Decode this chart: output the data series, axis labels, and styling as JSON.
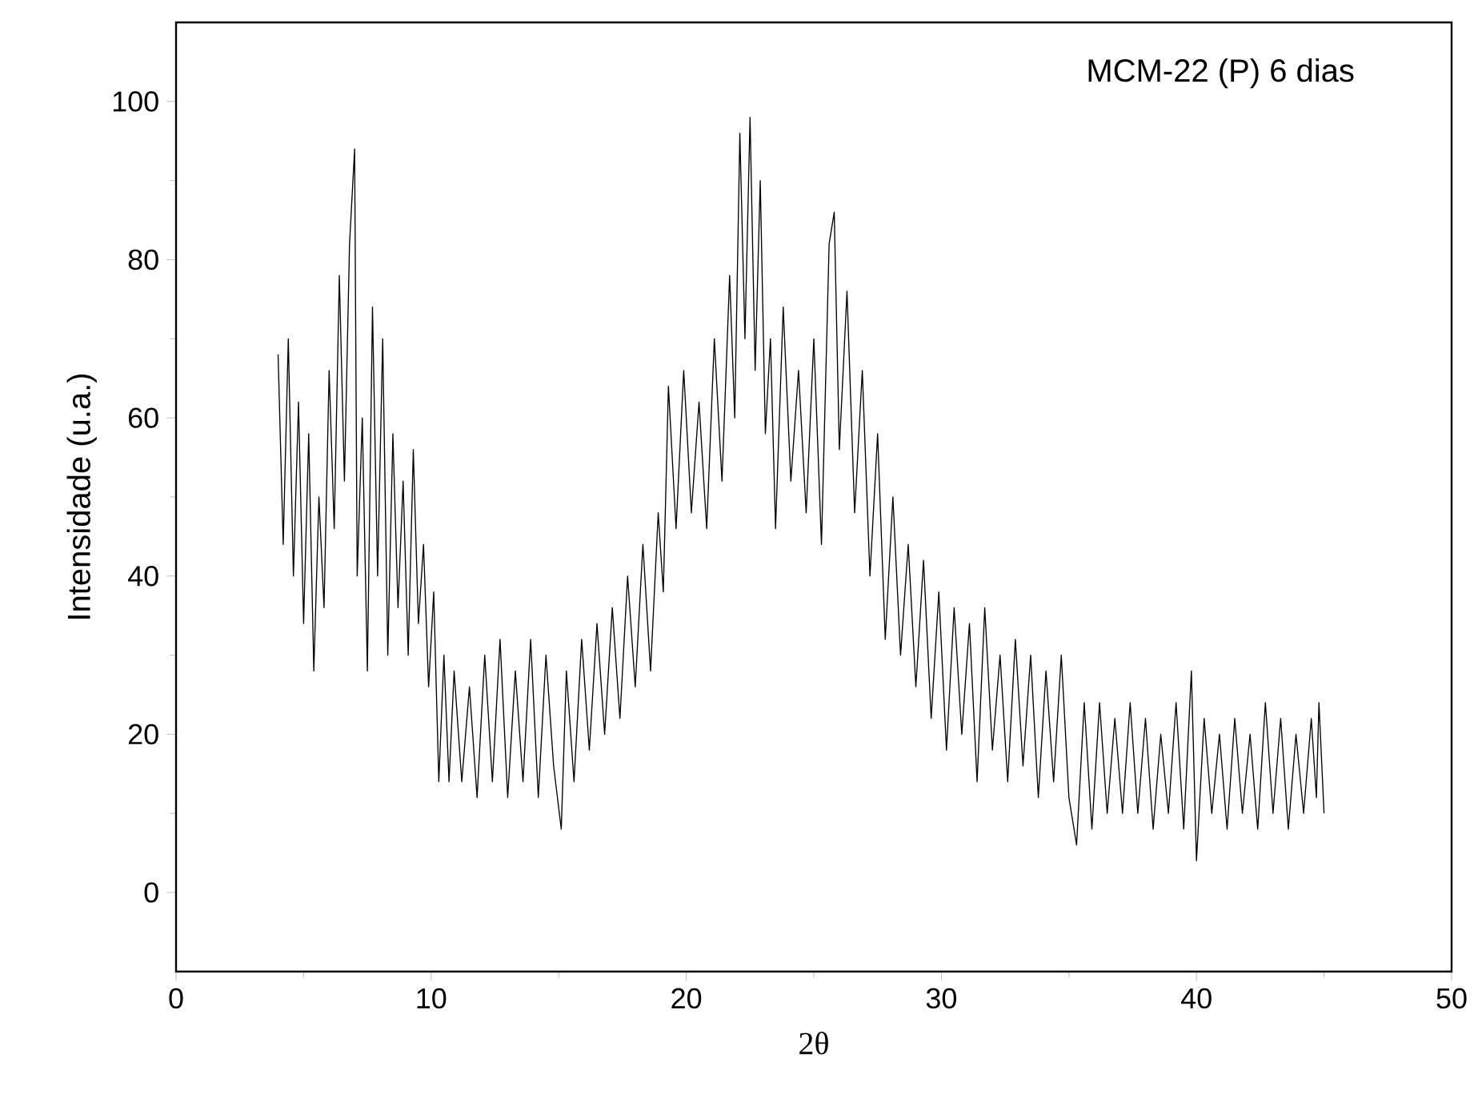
{
  "chart_data": {
    "type": "line",
    "xlabel": "2θ",
    "ylabel": "Intensidade (u.a.)",
    "annotations": [
      "MCM-22 (P) 6 dias"
    ],
    "xlim": [
      0,
      50
    ],
    "ylim": [
      -10,
      110
    ],
    "xticks": [
      0,
      10,
      20,
      30,
      40,
      50
    ],
    "yticks": [
      0,
      20,
      40,
      60,
      80,
      100
    ],
    "grid": false,
    "marker": "none",
    "line_style": "solid",
    "series": [
      {
        "color": "#000000",
        "x": [
          4.0,
          4.2,
          4.4,
          4.6,
          4.8,
          5.0,
          5.2,
          5.4,
          5.6,
          5.8,
          6.0,
          6.2,
          6.4,
          6.6,
          6.8,
          7.0,
          7.1,
          7.3,
          7.5,
          7.7,
          7.9,
          8.1,
          8.3,
          8.5,
          8.7,
          8.9,
          9.1,
          9.3,
          9.5,
          9.7,
          9.9,
          10.1,
          10.3,
          10.5,
          10.7,
          10.9,
          11.2,
          11.5,
          11.8,
          12.1,
          12.4,
          12.7,
          13.0,
          13.3,
          13.6,
          13.9,
          14.2,
          14.5,
          14.8,
          15.1,
          15.3,
          15.6,
          15.9,
          16.2,
          16.5,
          16.8,
          17.1,
          17.4,
          17.7,
          18.0,
          18.3,
          18.6,
          18.9,
          19.1,
          19.3,
          19.6,
          19.9,
          20.2,
          20.5,
          20.8,
          21.1,
          21.4,
          21.7,
          21.9,
          22.1,
          22.3,
          22.5,
          22.7,
          22.9,
          23.1,
          23.3,
          23.5,
          23.8,
          24.1,
          24.4,
          24.7,
          25.0,
          25.3,
          25.6,
          25.8,
          26.0,
          26.3,
          26.6,
          26.9,
          27.2,
          27.5,
          27.8,
          28.1,
          28.4,
          28.7,
          29.0,
          29.3,
          29.6,
          29.9,
          30.2,
          30.5,
          30.8,
          31.1,
          31.4,
          31.7,
          32.0,
          32.3,
          32.6,
          32.9,
          33.2,
          33.5,
          33.8,
          34.1,
          34.4,
          34.7,
          35.0,
          35.3,
          35.6,
          35.9,
          36.2,
          36.5,
          36.8,
          37.1,
          37.4,
          37.7,
          38.0,
          38.3,
          38.6,
          38.9,
          39.2,
          39.5,
          39.8,
          40.0,
          40.3,
          40.6,
          40.9,
          41.2,
          41.5,
          41.8,
          42.1,
          42.4,
          42.7,
          43.0,
          43.3,
          43.6,
          43.9,
          44.2,
          44.5,
          44.7,
          44.8,
          45.0
        ],
        "values": [
          68,
          44,
          70,
          40,
          62,
          34,
          58,
          28,
          50,
          36,
          66,
          46,
          78,
          52,
          82,
          94,
          40,
          60,
          28,
          74,
          40,
          70,
          30,
          58,
          36,
          52,
          30,
          56,
          34,
          44,
          26,
          38,
          14,
          30,
          14,
          28,
          14,
          26,
          12,
          30,
          14,
          32,
          12,
          28,
          14,
          32,
          12,
          30,
          16,
          8,
          28,
          14,
          32,
          18,
          34,
          20,
          36,
          22,
          40,
          26,
          44,
          28,
          48,
          38,
          64,
          46,
          66,
          48,
          62,
          46,
          70,
          52,
          78,
          60,
          96,
          70,
          98,
          66,
          90,
          58,
          70,
          46,
          74,
          52,
          66,
          48,
          70,
          44,
          82,
          86,
          56,
          76,
          48,
          66,
          40,
          58,
          32,
          50,
          30,
          44,
          26,
          42,
          22,
          38,
          18,
          36,
          20,
          34,
          14,
          36,
          18,
          30,
          14,
          32,
          16,
          30,
          12,
          28,
          14,
          30,
          12,
          6,
          24,
          8,
          24,
          10,
          22,
          10,
          24,
          10,
          22,
          8,
          20,
          10,
          24,
          8,
          28,
          4,
          22,
          10,
          20,
          8,
          22,
          10,
          20,
          8,
          24,
          10,
          22,
          8,
          20,
          10,
          22,
          12,
          24,
          10
        ]
      }
    ]
  }
}
